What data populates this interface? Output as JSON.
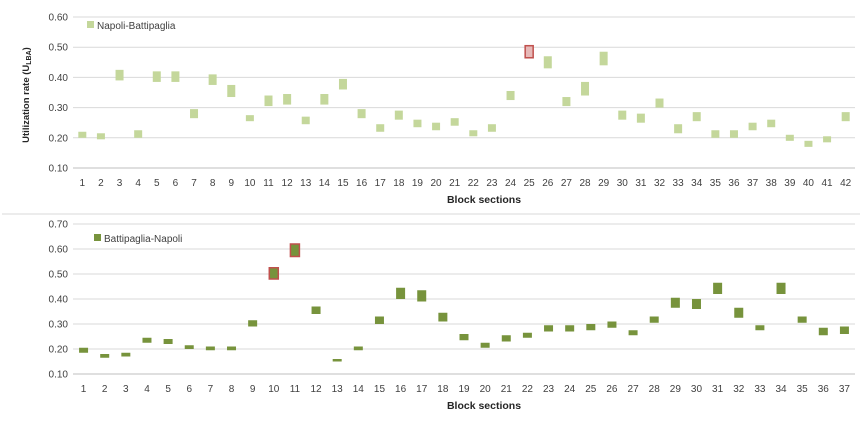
{
  "chart_data": [
    {
      "type": "bar",
      "panel": "top",
      "series_name": "Napoli-Battipaglia",
      "ylabel_main": "Utilization rate (U",
      "ylabel_sub": "LBA",
      "ylabel_close": ")",
      "xlabel": "Block sections",
      "ylim": [
        0.1,
        0.6
      ],
      "yticks": [
        "0.10",
        "0.20",
        "0.30",
        "0.40",
        "0.50",
        "0.60"
      ],
      "grid": true,
      "legend_position": "top-left",
      "color": "#c4d79b",
      "highlight_color": "#e6b9b8",
      "highlight_border": "#c0504d",
      "categories": [
        "1",
        "2",
        "3",
        "4",
        "5",
        "6",
        "7",
        "8",
        "9",
        "10",
        "11",
        "12",
        "13",
        "14",
        "15",
        "16",
        "17",
        "18",
        "19",
        "20",
        "21",
        "22",
        "23",
        "24",
        "25",
        "26",
        "27",
        "28",
        "29",
        "30",
        "31",
        "32",
        "33",
        "34",
        "35",
        "36",
        "37",
        "38",
        "39",
        "40",
        "41",
        "42"
      ],
      "ranges": [
        [
          0.2,
          0.22
        ],
        [
          0.195,
          0.215
        ],
        [
          0.39,
          0.425
        ],
        [
          0.2,
          0.225
        ],
        [
          0.385,
          0.42
        ],
        [
          0.385,
          0.42
        ],
        [
          0.265,
          0.295
        ],
        [
          0.375,
          0.41
        ],
        [
          0.335,
          0.375
        ],
        [
          0.255,
          0.275
        ],
        [
          0.305,
          0.34
        ],
        [
          0.31,
          0.345
        ],
        [
          0.245,
          0.27
        ],
        [
          0.31,
          0.345
        ],
        [
          0.36,
          0.395
        ],
        [
          0.265,
          0.295
        ],
        [
          0.22,
          0.245
        ],
        [
          0.26,
          0.29
        ],
        [
          0.235,
          0.26
        ],
        [
          0.225,
          0.25
        ],
        [
          0.24,
          0.265
        ],
        [
          0.205,
          0.225
        ],
        [
          0.22,
          0.245
        ],
        [
          0.325,
          0.355
        ],
        [
          0.465,
          0.505
        ],
        [
          0.43,
          0.47
        ],
        [
          0.305,
          0.335
        ],
        [
          0.34,
          0.385
        ],
        [
          0.44,
          0.485
        ],
        [
          0.26,
          0.29
        ],
        [
          0.25,
          0.28
        ],
        [
          0.3,
          0.33
        ],
        [
          0.215,
          0.245
        ],
        [
          0.255,
          0.285
        ],
        [
          0.2,
          0.225
        ],
        [
          0.2,
          0.225
        ],
        [
          0.225,
          0.25
        ],
        [
          0.235,
          0.26
        ],
        [
          0.19,
          0.21
        ],
        [
          0.17,
          0.19
        ],
        [
          0.185,
          0.205
        ],
        [
          0.255,
          0.285
        ]
      ],
      "highlighted": [
        "25"
      ]
    },
    {
      "type": "bar",
      "panel": "bottom",
      "series_name": "Battipaglia-Napoli",
      "xlabel": "Block sections",
      "ylim": [
        0.1,
        0.7
      ],
      "yticks": [
        "0.10",
        "0.20",
        "0.30",
        "0.40",
        "0.50",
        "0.60",
        "0.70"
      ],
      "grid": true,
      "legend_position": "top-left",
      "color": "#77933c",
      "highlight_color": "#77933c",
      "highlight_border": "#c0504d",
      "categories": [
        "1",
        "2",
        "3",
        "4",
        "5",
        "6",
        "7",
        "8",
        "9",
        "10",
        "11",
        "12",
        "13",
        "14",
        "15",
        "16",
        "17",
        "18",
        "19",
        "20",
        "21",
        "22",
        "23",
        "24",
        "25",
        "26",
        "27",
        "28",
        "29",
        "30",
        "31",
        "32",
        "33",
        "34",
        "35",
        "36",
        "37"
      ],
      "ranges": [
        [
          0.185,
          0.205
        ],
        [
          0.165,
          0.18
        ],
        [
          0.17,
          0.185
        ],
        [
          0.225,
          0.245
        ],
        [
          0.22,
          0.24
        ],
        [
          0.2,
          0.215
        ],
        [
          0.195,
          0.21
        ],
        [
          0.195,
          0.21
        ],
        [
          0.29,
          0.315
        ],
        [
          0.48,
          0.525
        ],
        [
          0.57,
          0.62
        ],
        [
          0.34,
          0.37
        ],
        [
          0.15,
          0.16
        ],
        [
          0.195,
          0.21
        ],
        [
          0.3,
          0.33
        ],
        [
          0.4,
          0.445
        ],
        [
          0.39,
          0.435
        ],
        [
          0.31,
          0.345
        ],
        [
          0.235,
          0.26
        ],
        [
          0.205,
          0.225
        ],
        [
          0.23,
          0.255
        ],
        [
          0.245,
          0.265
        ],
        [
          0.27,
          0.295
        ],
        [
          0.27,
          0.295
        ],
        [
          0.275,
          0.3
        ],
        [
          0.285,
          0.31
        ],
        [
          0.255,
          0.275
        ],
        [
          0.305,
          0.33
        ],
        [
          0.365,
          0.405
        ],
        [
          0.36,
          0.4
        ],
        [
          0.42,
          0.465
        ],
        [
          0.325,
          0.365
        ],
        [
          0.275,
          0.295
        ],
        [
          0.42,
          0.465
        ],
        [
          0.305,
          0.33
        ],
        [
          0.255,
          0.285
        ],
        [
          0.26,
          0.29
        ]
      ],
      "highlighted": [
        "10",
        "11"
      ]
    }
  ]
}
